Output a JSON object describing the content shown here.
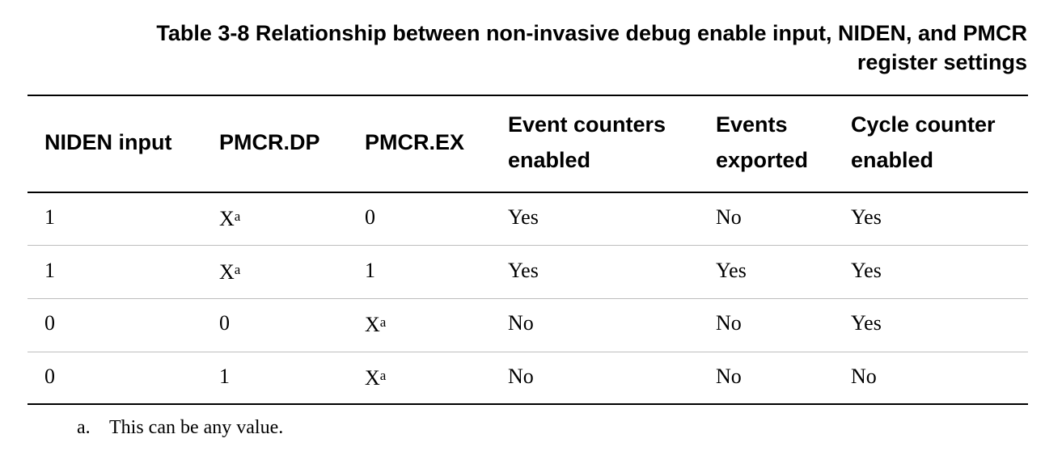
{
  "table": {
    "title_line1": "Table 3-8 Relationship between non-invasive debug enable input, NIDEN, and PMCR",
    "title_line2": "register settings",
    "headers": [
      {
        "line1": "NIDEN input",
        "line2": ""
      },
      {
        "line1": "PMCR.DP",
        "line2": ""
      },
      {
        "line1": "PMCR.EX",
        "line2": ""
      },
      {
        "line1": "Event counters",
        "line2": "enabled"
      },
      {
        "line1": "Events",
        "line2": "exported"
      },
      {
        "line1": "Cycle counter",
        "line2": "enabled"
      }
    ],
    "rows": [
      {
        "niden": "1",
        "dp": "X",
        "dp_note": "a",
        "ex": "0",
        "ex_note": "",
        "counters": "Yes",
        "exported": "No",
        "cycle": "Yes"
      },
      {
        "niden": "1",
        "dp": "X",
        "dp_note": "a",
        "ex": "1",
        "ex_note": "",
        "counters": "Yes",
        "exported": "Yes",
        "cycle": "Yes"
      },
      {
        "niden": "0",
        "dp": "0",
        "dp_note": "",
        "ex": "X",
        "ex_note": "a",
        "counters": "No",
        "exported": "No",
        "cycle": "Yes"
      },
      {
        "niden": "0",
        "dp": "1",
        "dp_note": "",
        "ex": "X",
        "ex_note": "a",
        "counters": "No",
        "exported": "No",
        "cycle": "No"
      }
    ],
    "footnote": {
      "marker": "a.",
      "text": "This can be any value."
    }
  }
}
